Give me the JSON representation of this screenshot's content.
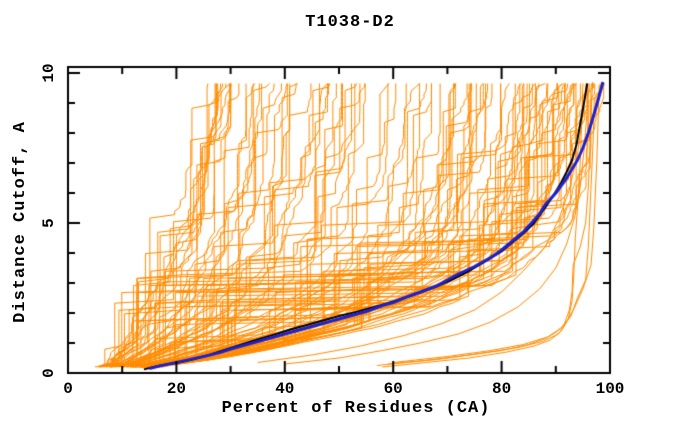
{
  "chart_data": {
    "type": "line",
    "title": "T1038-D2",
    "xlabel": "Percent of Residues (CA)",
    "ylabel": "Distance Cutoff, A",
    "xlim": [
      0,
      100
    ],
    "ylim": [
      0,
      10
    ],
    "x_major_ticks": [
      0,
      20,
      40,
      60,
      80,
      100
    ],
    "x_minor_step": 10,
    "y_major_ticks": [
      0,
      5,
      10
    ],
    "y_minor_step": 1,
    "grid": false,
    "legend_position": "none",
    "colors": {
      "ensemble": "#ff8c00",
      "highlight_primary": "#2121cc",
      "highlight_secondary": "#000000",
      "axis": "#000000",
      "background": "#ffffff"
    },
    "series": [
      {
        "name": "highlight-blue-model",
        "color_key": "highlight_primary",
        "width": 3,
        "points": [
          [
            15,
            0.15
          ],
          [
            18,
            0.28
          ],
          [
            20,
            0.35
          ],
          [
            23,
            0.47
          ],
          [
            25,
            0.55
          ],
          [
            28,
            0.68
          ],
          [
            30,
            0.8
          ],
          [
            33,
            0.95
          ],
          [
            35,
            1.05
          ],
          [
            38,
            1.2
          ],
          [
            40,
            1.3
          ],
          [
            43,
            1.45
          ],
          [
            45,
            1.55
          ],
          [
            48,
            1.7
          ],
          [
            50,
            1.8
          ],
          [
            53,
            1.95
          ],
          [
            55,
            2.05
          ],
          [
            58,
            2.25
          ],
          [
            60,
            2.35
          ],
          [
            62,
            2.5
          ],
          [
            65,
            2.7
          ],
          [
            68,
            2.9
          ],
          [
            70,
            3.1
          ],
          [
            72,
            3.3
          ],
          [
            75,
            3.55
          ],
          [
            78,
            3.85
          ],
          [
            80,
            4.1
          ],
          [
            82,
            4.4
          ],
          [
            84,
            4.7
          ],
          [
            86,
            5.1
          ],
          [
            87,
            5.3
          ],
          [
            88,
            5.6
          ],
          [
            90,
            6.0
          ],
          [
            91,
            6.25
          ],
          [
            92,
            6.5
          ],
          [
            93,
            6.8
          ],
          [
            94,
            7.1
          ],
          [
            95,
            7.5
          ],
          [
            96,
            8.0
          ],
          [
            97,
            8.6
          ],
          [
            97.8,
            9.1
          ],
          [
            98.4,
            9.5
          ],
          [
            98.7,
            9.7
          ]
        ]
      },
      {
        "name": "highlight-black-model",
        "color_key": "highlight_secondary",
        "width": 2,
        "points": [
          [
            14,
            0.12
          ],
          [
            17,
            0.25
          ],
          [
            20,
            0.33
          ],
          [
            23,
            0.45
          ],
          [
            26,
            0.6
          ],
          [
            29,
            0.78
          ],
          [
            32,
            0.95
          ],
          [
            35,
            1.12
          ],
          [
            38,
            1.28
          ],
          [
            41,
            1.45
          ],
          [
            44,
            1.6
          ],
          [
            47,
            1.75
          ],
          [
            50,
            1.9
          ],
          [
            53,
            2.03
          ],
          [
            56,
            2.18
          ],
          [
            59,
            2.33
          ],
          [
            62,
            2.5
          ],
          [
            65,
            2.68
          ],
          [
            68,
            2.88
          ],
          [
            71,
            3.12
          ],
          [
            74,
            3.4
          ],
          [
            77,
            3.72
          ],
          [
            80,
            4.05
          ],
          [
            82,
            4.35
          ],
          [
            84,
            4.65
          ],
          [
            86,
            5.0
          ],
          [
            88,
            5.5
          ],
          [
            89.5,
            5.9
          ],
          [
            91,
            6.35
          ],
          [
            92,
            6.7
          ],
          [
            93,
            7.1
          ],
          [
            93.8,
            7.6
          ],
          [
            94.5,
            8.3
          ],
          [
            95.2,
            9.0
          ],
          [
            95.8,
            9.65
          ]
        ]
      },
      {
        "name": "outlier-model-1",
        "color_key": "ensemble",
        "width": 1,
        "points": [
          [
            57,
            0.25
          ],
          [
            65,
            0.4
          ],
          [
            72,
            0.55
          ],
          [
            80,
            0.75
          ],
          [
            85,
            0.95
          ],
          [
            88,
            1.15
          ],
          [
            90,
            1.35
          ],
          [
            91.5,
            1.6
          ],
          [
            92.5,
            2.1
          ],
          [
            93,
            2.7
          ],
          [
            93.2,
            3.6
          ],
          [
            94.5,
            4.2
          ],
          [
            95.5,
            5.0
          ],
          [
            96,
            6.2
          ],
          [
            96.3,
            7.5
          ],
          [
            96.6,
            9.0
          ],
          [
            96.8,
            9.7
          ]
        ]
      },
      {
        "name": "outlier-model-2",
        "color_key": "ensemble",
        "width": 1,
        "points": [
          [
            58,
            0.2
          ],
          [
            66,
            0.35
          ],
          [
            74,
            0.5
          ],
          [
            81,
            0.7
          ],
          [
            86,
            0.9
          ],
          [
            89,
            1.1
          ],
          [
            91,
            1.4
          ],
          [
            92.3,
            1.8
          ],
          [
            93,
            2.4
          ],
          [
            93.3,
            3.2
          ],
          [
            93.6,
            4.5
          ],
          [
            94,
            5.5
          ],
          [
            94.5,
            7.0
          ],
          [
            94.8,
            8.5
          ],
          [
            95,
            9.65
          ]
        ]
      },
      {
        "name": "outlier-model-3",
        "color_key": "ensemble",
        "width": 1,
        "points": [
          [
            59,
            0.3
          ],
          [
            68,
            0.45
          ],
          [
            76,
            0.65
          ],
          [
            83,
            0.85
          ],
          [
            87.5,
            1.05
          ],
          [
            90.5,
            1.3
          ],
          [
            92,
            1.7
          ],
          [
            93.5,
            2.2
          ],
          [
            95,
            2.8
          ],
          [
            96.5,
            3.6
          ],
          [
            97,
            4.8
          ],
          [
            97.3,
            6.0
          ],
          [
            97.6,
            7.2
          ],
          [
            97.8,
            8.4
          ],
          [
            98,
            9.6
          ]
        ]
      },
      {
        "name": "outlier-model-4",
        "color_key": "ensemble",
        "width": 1,
        "points": [
          [
            60,
            0.35
          ],
          [
            70,
            0.55
          ],
          [
            78,
            0.75
          ],
          [
            84,
            0.95
          ],
          [
            88.5,
            1.2
          ],
          [
            91,
            1.5
          ],
          [
            92.8,
            1.9
          ],
          [
            94,
            2.5
          ],
          [
            95.5,
            3.1
          ],
          [
            96,
            4.2
          ],
          [
            96.3,
            5.4
          ],
          [
            96.6,
            6.6
          ],
          [
            96.9,
            7.8
          ],
          [
            97.1,
            9.2
          ]
        ]
      },
      {
        "name": "low-model-1",
        "color_key": "ensemble",
        "width": 1,
        "points": [
          [
            40,
            0.3
          ],
          [
            50,
            0.5
          ],
          [
            58,
            0.75
          ],
          [
            65,
            1.0
          ],
          [
            72,
            1.3
          ],
          [
            78,
            1.7
          ],
          [
            83,
            2.2
          ],
          [
            87,
            2.8
          ],
          [
            90,
            3.5
          ],
          [
            92,
            4.3
          ],
          [
            93.5,
            5.2
          ],
          [
            94.5,
            6.2
          ],
          [
            95.2,
            7.4
          ],
          [
            95.8,
            8.8
          ],
          [
            96.2,
            9.65
          ]
        ]
      },
      {
        "name": "low-model-2",
        "color_key": "ensemble",
        "width": 1,
        "points": [
          [
            35,
            0.35
          ],
          [
            45,
            0.6
          ],
          [
            54,
            0.9
          ],
          [
            62,
            1.25
          ],
          [
            69,
            1.65
          ],
          [
            75,
            2.1
          ],
          [
            80,
            2.7
          ],
          [
            84,
            3.4
          ],
          [
            88,
            4.2
          ],
          [
            90.5,
            5.1
          ],
          [
            92.5,
            6.1
          ],
          [
            94,
            7.3
          ],
          [
            95,
            8.6
          ],
          [
            95.6,
            9.65
          ]
        ]
      }
    ],
    "ensemble": {
      "name": "model-curves",
      "color_key": "ensemble",
      "count": 110,
      "seed": 1038,
      "start_distance": 0.2,
      "top_distance": 9.65,
      "levels": 80,
      "jitter": 1.3,
      "t_exponent": 1.5,
      "plateau_probability": 0.07,
      "upper_envelope": [
        [
          0.2,
          6
        ],
        [
          0.5,
          7
        ],
        [
          1,
          9
        ],
        [
          1.5,
          10
        ],
        [
          2,
          11
        ],
        [
          2.5,
          12
        ],
        [
          3,
          13
        ],
        [
          3.5,
          14
        ],
        [
          4,
          15
        ],
        [
          5,
          16.5
        ],
        [
          6,
          18
        ],
        [
          7,
          19
        ],
        [
          8,
          20
        ],
        [
          9,
          21
        ],
        [
          9.65,
          21.8
        ]
      ],
      "lower_envelope": [
        [
          0.2,
          16
        ],
        [
          0.5,
          28
        ],
        [
          1,
          42
        ],
        [
          1.5,
          55
        ],
        [
          2,
          65
        ],
        [
          2.5,
          73
        ],
        [
          3,
          79
        ],
        [
          3.5,
          84
        ],
        [
          4,
          88
        ],
        [
          4.5,
          90.5
        ],
        [
          5,
          92
        ],
        [
          5.5,
          93
        ],
        [
          6,
          94
        ],
        [
          6.5,
          94.8
        ],
        [
          7,
          95.5
        ],
        [
          7.5,
          96.2
        ],
        [
          8,
          96.8
        ],
        [
          8.5,
          97.3
        ],
        [
          9,
          97.8
        ],
        [
          9.65,
          98.4
        ]
      ]
    }
  }
}
